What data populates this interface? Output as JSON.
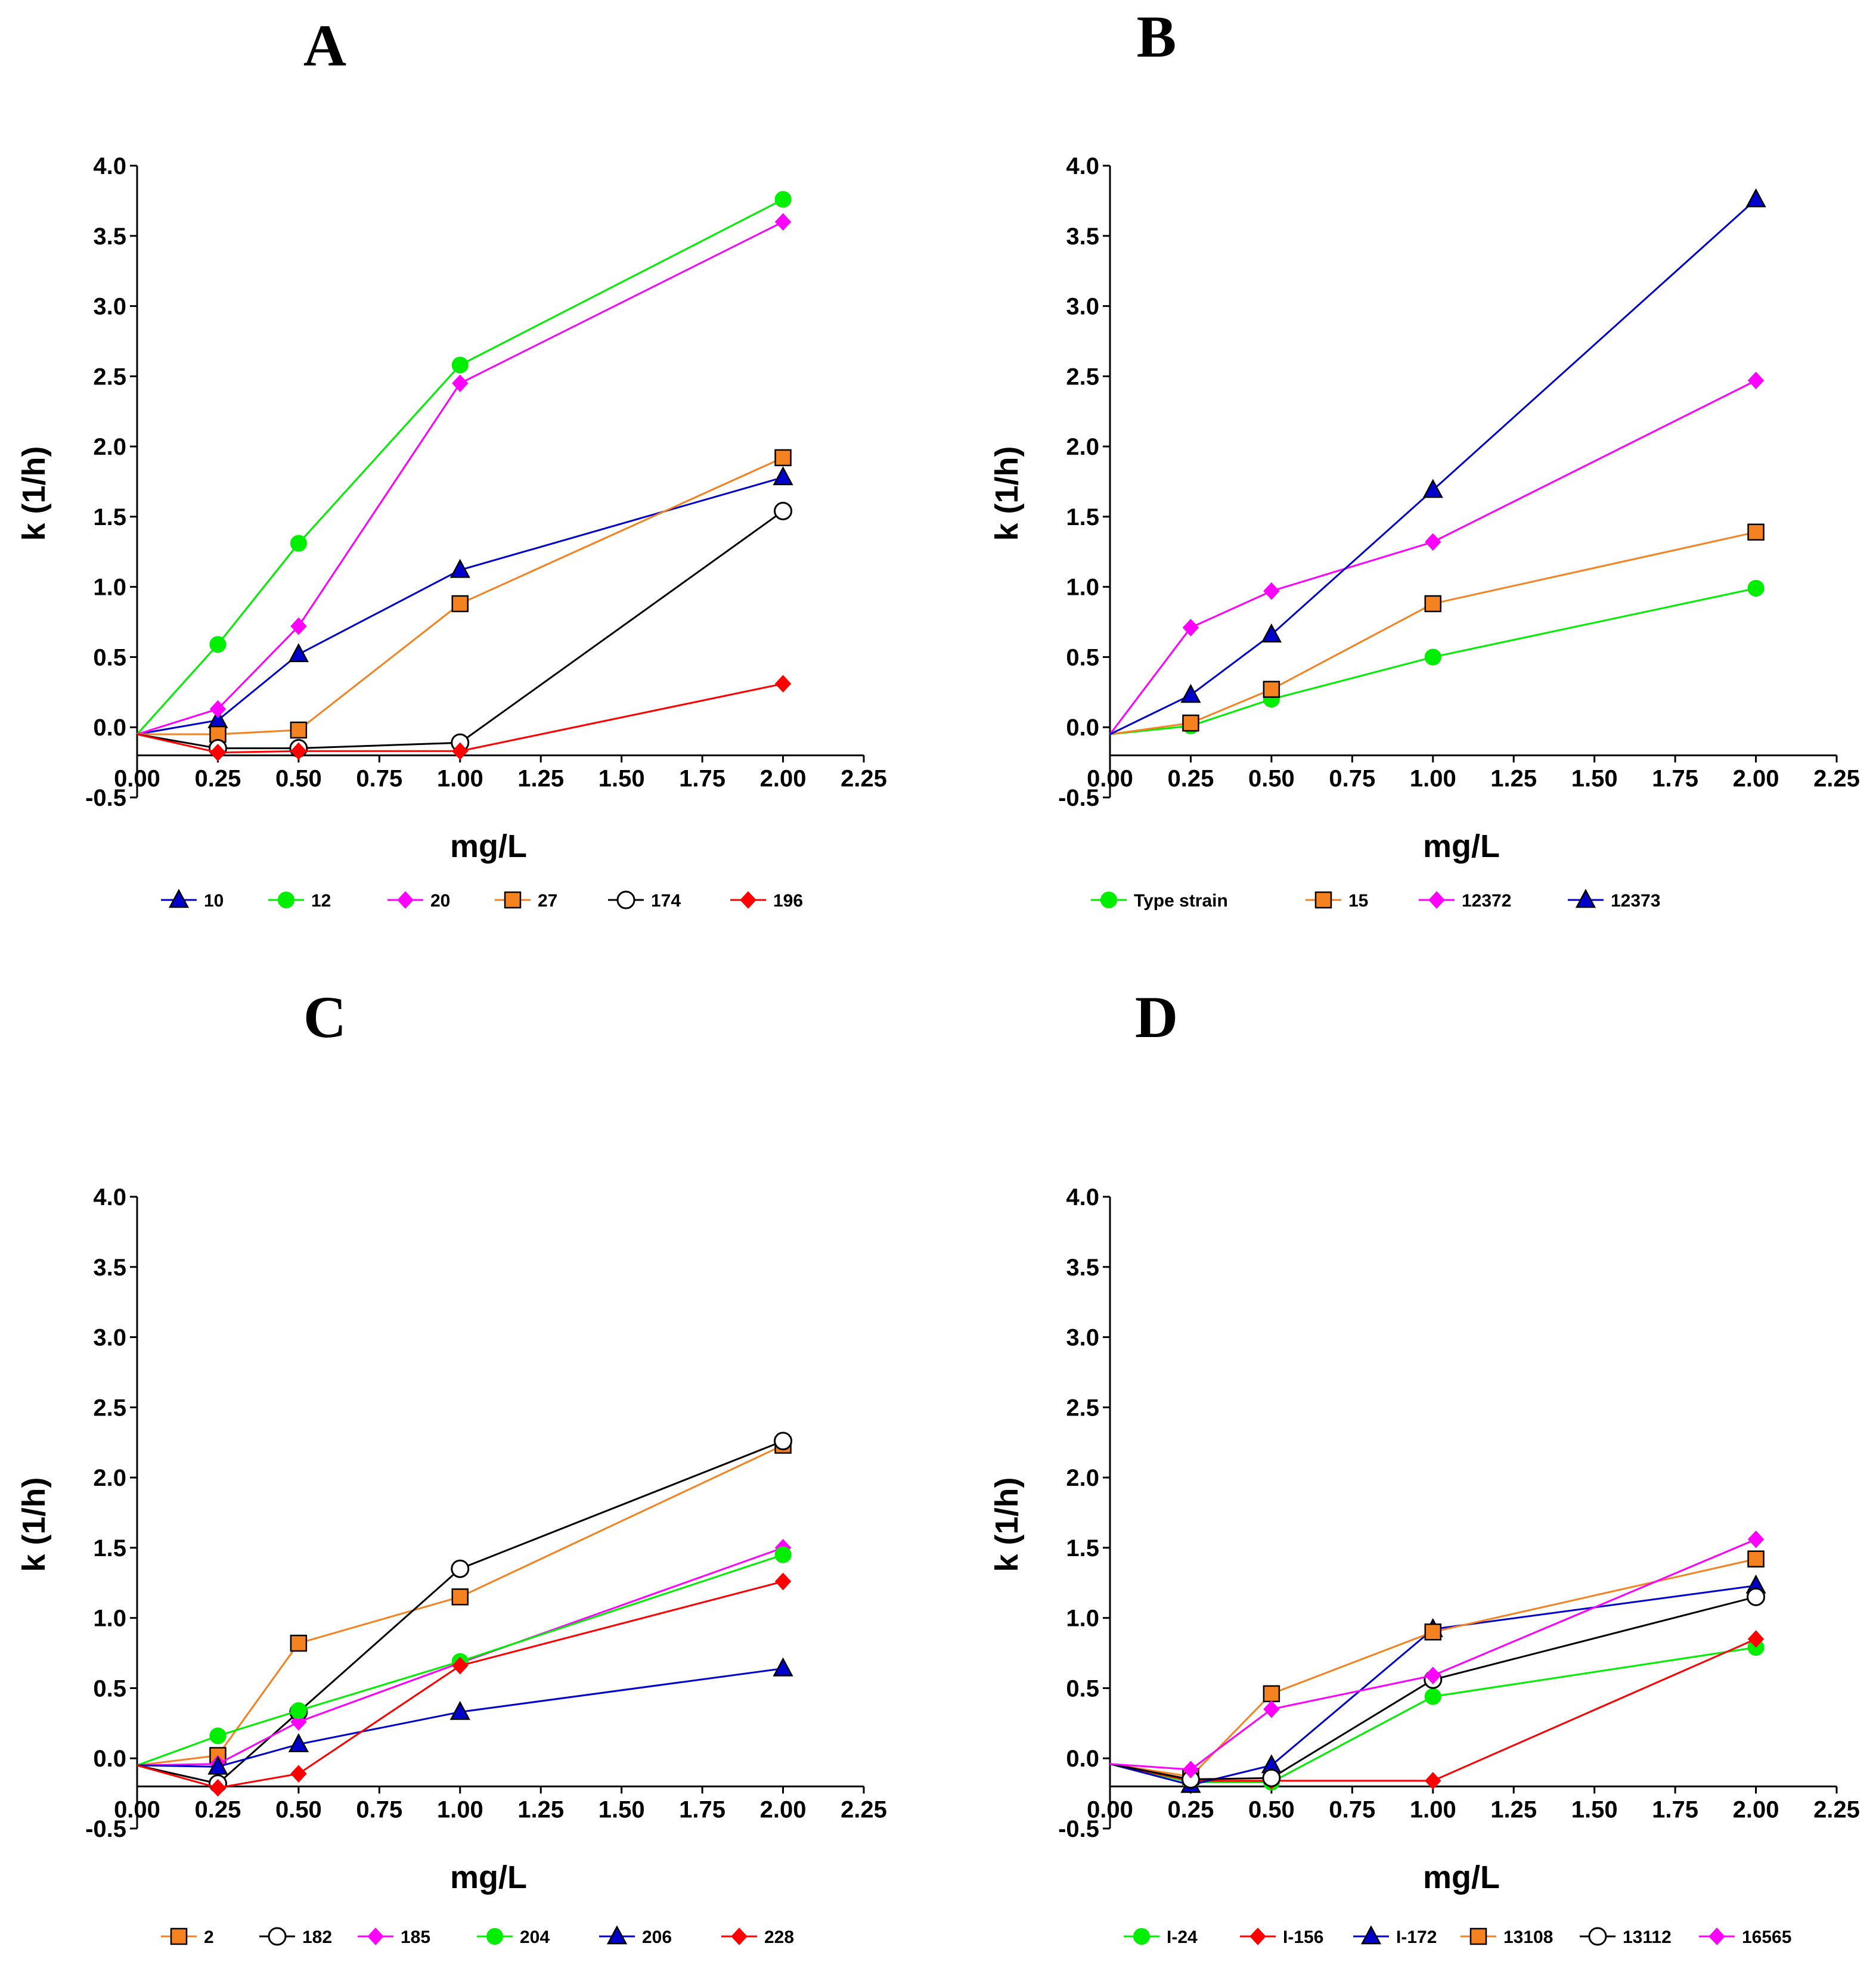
{
  "chart_data": [
    {
      "type": "line",
      "panel_label": "A",
      "xlabel": "mg/L",
      "ylabel": "k (1/h)",
      "xlim": [
        0,
        2.25
      ],
      "ylim": [
        -0.5,
        4.0
      ],
      "x_ticks": [
        "0.00",
        "0.25",
        "0.50",
        "0.75",
        "1.00",
        "1.25",
        "1.50",
        "1.75",
        "2.00",
        "2.25"
      ],
      "y_ticks": [
        "-0.5",
        "0.0",
        "0.5",
        "1.0",
        "1.5",
        "2.0",
        "2.5",
        "3.0",
        "3.5",
        "4.0"
      ],
      "x": [
        0,
        0.25,
        0.5,
        1.0,
        2.0
      ],
      "series": [
        {
          "name": "10",
          "color": "#0000cc",
          "marker": "triangle",
          "values": [
            -0.05,
            0.05,
            0.52,
            1.12,
            1.78
          ]
        },
        {
          "name": "12",
          "color": "#00ee00",
          "marker": "circle",
          "values": [
            -0.05,
            0.59,
            1.31,
            2.58,
            3.76
          ]
        },
        {
          "name": "20",
          "color": "#ff00ff",
          "marker": "diamond",
          "values": [
            -0.05,
            0.13,
            0.72,
            2.45,
            3.6
          ]
        },
        {
          "name": "27",
          "color": "#f58220",
          "marker": "square",
          "values": [
            -0.05,
            -0.05,
            -0.02,
            0.88,
            1.92
          ]
        },
        {
          "name": "174",
          "color": "#000000",
          "marker": "open-circle",
          "values": [
            -0.05,
            -0.15,
            -0.15,
            -0.11,
            1.54
          ]
        },
        {
          "name": "196",
          "color": "#ff0000",
          "marker": "diamond",
          "values": [
            -0.05,
            -0.18,
            -0.17,
            -0.17,
            0.31
          ]
        }
      ]
    },
    {
      "type": "line",
      "panel_label": "B",
      "xlabel": "mg/L",
      "ylabel": "k (1/h)",
      "xlim": [
        0,
        2.25
      ],
      "ylim": [
        -0.5,
        4.0
      ],
      "x_ticks": [
        "0.00",
        "0.25",
        "0.50",
        "0.75",
        "1.00",
        "1.25",
        "1.50",
        "1.75",
        "2.00",
        "2.25"
      ],
      "y_ticks": [
        "-0.5",
        "0.0",
        "0.5",
        "1.0",
        "1.5",
        "2.0",
        "2.5",
        "3.0",
        "3.5",
        "4.0"
      ],
      "x": [
        0,
        0.25,
        0.5,
        1.0,
        2.0
      ],
      "series": [
        {
          "name": "Type strain",
          "color": "#00ee00",
          "marker": "circle",
          "values": [
            -0.05,
            0.01,
            0.2,
            0.5,
            0.99
          ]
        },
        {
          "name": "15",
          "color": "#f58220",
          "marker": "square",
          "values": [
            -0.05,
            0.03,
            0.27,
            0.88,
            1.39
          ]
        },
        {
          "name": "12372",
          "color": "#ff00ff",
          "marker": "diamond",
          "values": [
            -0.05,
            0.71,
            0.97,
            1.32,
            2.47
          ]
        },
        {
          "name": "12373",
          "color": "#0000cc",
          "marker": "triangle",
          "values": [
            -0.05,
            0.23,
            0.66,
            1.69,
            3.76
          ]
        }
      ]
    },
    {
      "type": "line",
      "panel_label": "C",
      "xlabel": "mg/L",
      "ylabel": "k (1/h)",
      "xlim": [
        0,
        2.25
      ],
      "ylim": [
        -0.5,
        4.0
      ],
      "x_ticks": [
        "0.00",
        "0.25",
        "0.50",
        "0.75",
        "1.00",
        "1.25",
        "1.50",
        "1.75",
        "2.00",
        "2.25"
      ],
      "y_ticks": [
        "-0.5",
        "0.0",
        "0.5",
        "1.0",
        "1.5",
        "2.0",
        "2.5",
        "3.0",
        "3.5",
        "4.0"
      ],
      "x": [
        0,
        0.25,
        0.5,
        1.0,
        2.0
      ],
      "series": [
        {
          "name": "2",
          "color": "#f58220",
          "marker": "square",
          "values": [
            -0.05,
            0.02,
            0.82,
            1.15,
            2.23
          ]
        },
        {
          "name": "182",
          "color": "#000000",
          "marker": "open-circle",
          "values": [
            -0.05,
            -0.18,
            0.33,
            1.35,
            2.26
          ]
        },
        {
          "name": "185",
          "color": "#ff00ff",
          "marker": "diamond",
          "values": [
            -0.05,
            -0.04,
            0.26,
            0.68,
            1.5
          ]
        },
        {
          "name": "204",
          "color": "#00ee00",
          "marker": "circle",
          "values": [
            -0.05,
            0.16,
            0.34,
            0.69,
            1.45
          ]
        },
        {
          "name": "206",
          "color": "#0000cc",
          "marker": "triangle",
          "values": [
            -0.05,
            -0.06,
            0.1,
            0.33,
            0.64
          ]
        },
        {
          "name": "228",
          "color": "#ff0000",
          "marker": "diamond",
          "values": [
            -0.05,
            -0.21,
            -0.11,
            0.66,
            1.26
          ]
        }
      ]
    },
    {
      "type": "line",
      "panel_label": "D",
      "xlabel": "mg/L",
      "ylabel": "k (1/h)",
      "xlim": [
        0,
        2.25
      ],
      "ylim": [
        -0.5,
        4.0
      ],
      "x_ticks": [
        "0.00",
        "0.25",
        "0.50",
        "0.75",
        "1.00",
        "1.25",
        "1.50",
        "1.75",
        "2.00",
        "2.25"
      ],
      "y_ticks": [
        "-0.5",
        "0.0",
        "0.5",
        "1.0",
        "1.5",
        "2.0",
        "2.5",
        "3.0",
        "3.5",
        "4.0"
      ],
      "x": [
        0,
        0.25,
        0.5,
        1.0,
        2.0
      ],
      "series": [
        {
          "name": "I-24",
          "color": "#00ee00",
          "marker": "circle",
          "values": [
            -0.04,
            -0.17,
            -0.17,
            0.44,
            0.79
          ]
        },
        {
          "name": "I-156",
          "color": "#ff0000",
          "marker": "diamond",
          "values": [
            -0.04,
            -0.16,
            -0.16,
            -0.16,
            0.85
          ]
        },
        {
          "name": "I-172",
          "color": "#0000cc",
          "marker": "triangle",
          "values": [
            -0.04,
            -0.19,
            -0.05,
            0.92,
            1.23
          ]
        },
        {
          "name": "13108",
          "color": "#f58220",
          "marker": "square",
          "values": [
            -0.04,
            -0.13,
            0.46,
            0.9,
            1.42
          ]
        },
        {
          "name": "13112",
          "color": "#000000",
          "marker": "open-circle",
          "values": [
            -0.04,
            -0.15,
            -0.14,
            0.56,
            1.15
          ]
        },
        {
          "name": "16565",
          "color": "#ff00ff",
          "marker": "diamond",
          "values": [
            -0.04,
            -0.08,
            0.35,
            0.59,
            1.56
          ]
        }
      ]
    }
  ]
}
